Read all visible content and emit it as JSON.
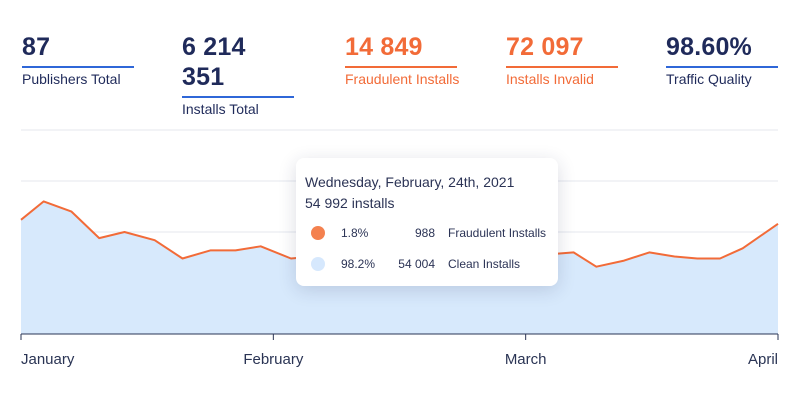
{
  "kpis": [
    {
      "value": "87",
      "label": "Publishers Total",
      "color": "#1f2a5a"
    },
    {
      "value": "6 214 351",
      "label": "Installs Total",
      "color": "#1f2a5a"
    },
    {
      "value": "14 849",
      "label": "Fraudulent Installs",
      "color": "#f26b38"
    },
    {
      "value": "72 097",
      "label": "Installs Invalid",
      "color": "#f26b38"
    },
    {
      "value": "98.60%",
      "label": "Traffic Quality",
      "color": "#1f2a5a"
    }
  ],
  "tooltip": {
    "date": "Wednesday, February, 24th, 2021",
    "total": "54 992 installs",
    "rows": [
      {
        "pct": "1.8%",
        "count": "988",
        "name": "Fraudulent Installs",
        "color": "#f4814f"
      },
      {
        "pct": "98.2%",
        "count": "54 004",
        "name": "Clean Installs",
        "color": "#d6e8fd"
      }
    ]
  },
  "chart_data": {
    "type": "area",
    "x_ticks": [
      "January",
      "February",
      "March",
      "April"
    ],
    "x": [
      0,
      0.09,
      0.2,
      0.31,
      0.41,
      0.53,
      0.64,
      0.75,
      0.85,
      0.95,
      1.07,
      1.16,
      1.26,
      1.36,
      1.46,
      1.56,
      1.66,
      1.76,
      1.86,
      1.96,
      2.05,
      2.09,
      2.19,
      2.28,
      2.39,
      2.49,
      2.59,
      2.68,
      2.77,
      2.86,
      3.0
    ],
    "series": [
      {
        "values": [
          56,
          65,
          60,
          47,
          50,
          46,
          37,
          41,
          41,
          43,
          37,
          38,
          38,
          38,
          38,
          38,
          38,
          38,
          38,
          38,
          38,
          39,
          40,
          33,
          36,
          40,
          38,
          37,
          37,
          42,
          54
        ]
      }
    ],
    "grid": true,
    "colors": {
      "line": "#f26b38",
      "fill": "#d7e9fc",
      "grid": "#e4e7ee",
      "axis": "#2a3454"
    }
  }
}
